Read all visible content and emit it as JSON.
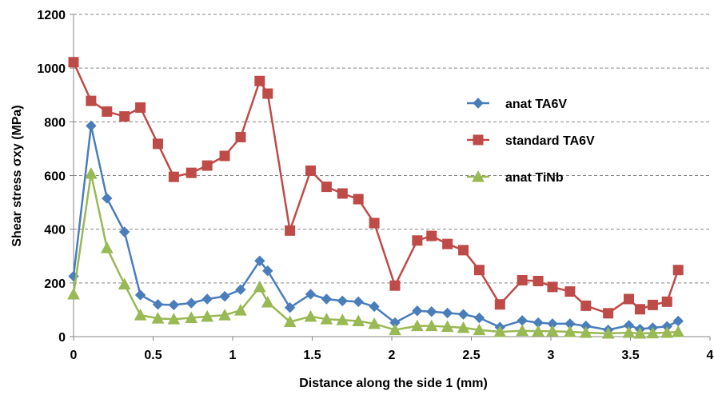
{
  "chart_data": {
    "type": "line",
    "title": "",
    "xlabel": "Distance along the side 1 (mm)",
    "ylabel": "Shear stress σxy (MPa)",
    "xlim": [
      0,
      4
    ],
    "ylim": [
      0,
      1200
    ],
    "x_ticks": [
      "0",
      "0.5",
      "1",
      "1.5",
      "2",
      "2.5",
      "3",
      "3.5",
      "4"
    ],
    "y_ticks": [
      "0",
      "200",
      "400",
      "600",
      "800",
      "1000",
      "1200"
    ],
    "grid": "horizontal-dashed",
    "legend_position": "right",
    "series": [
      {
        "name": "anat TA6V",
        "color": "#4a7ebb",
        "marker": "diamond",
        "x": [
          0,
          0.11,
          0.21,
          0.32,
          0.42,
          0.53,
          0.63,
          0.74,
          0.84,
          0.95,
          1.05,
          1.17,
          1.22,
          1.36,
          1.49,
          1.59,
          1.69,
          1.79,
          1.89,
          2.02,
          2.16,
          2.25,
          2.35,
          2.45,
          2.55,
          2.68,
          2.82,
          2.92,
          3.01,
          3.12,
          3.22,
          3.36,
          3.49,
          3.56,
          3.64,
          3.73,
          3.8
        ],
        "y": [
          225,
          785,
          515,
          390,
          155,
          120,
          118,
          125,
          140,
          150,
          175,
          282,
          245,
          108,
          158,
          140,
          133,
          130,
          112,
          52,
          96,
          93,
          88,
          83,
          70,
          35,
          60,
          52,
          48,
          48,
          40,
          25,
          42,
          28,
          33,
          38,
          58
        ]
      },
      {
        "name": "standard TA6V",
        "color": "#be4b48",
        "marker": "square",
        "x": [
          0,
          0.11,
          0.21,
          0.32,
          0.42,
          0.53,
          0.63,
          0.74,
          0.84,
          0.95,
          1.05,
          1.17,
          1.22,
          1.36,
          1.49,
          1.59,
          1.69,
          1.79,
          1.89,
          2.02,
          2.16,
          2.25,
          2.35,
          2.45,
          2.55,
          2.68,
          2.82,
          2.92,
          3.01,
          3.12,
          3.22,
          3.36,
          3.49,
          3.56,
          3.64,
          3.73,
          3.8
        ],
        "y": [
          1022,
          878,
          838,
          820,
          853,
          718,
          595,
          610,
          637,
          673,
          743,
          952,
          905,
          395,
          618,
          558,
          533,
          512,
          423,
          190,
          358,
          375,
          345,
          322,
          248,
          120,
          210,
          207,
          185,
          168,
          115,
          87,
          140,
          102,
          118,
          130,
          248
        ]
      },
      {
        "name": "anat TiNb",
        "color": "#98b954",
        "marker": "triangle",
        "x": [
          0,
          0.11,
          0.21,
          0.32,
          0.42,
          0.53,
          0.63,
          0.74,
          0.84,
          0.95,
          1.05,
          1.17,
          1.22,
          1.36,
          1.49,
          1.59,
          1.69,
          1.79,
          1.89,
          2.02,
          2.16,
          2.25,
          2.35,
          2.45,
          2.55,
          2.68,
          2.82,
          2.92,
          3.01,
          3.12,
          3.22,
          3.36,
          3.49,
          3.56,
          3.64,
          3.73,
          3.8
        ],
        "y": [
          158,
          607,
          330,
          195,
          80,
          68,
          65,
          70,
          75,
          80,
          98,
          185,
          128,
          55,
          75,
          65,
          62,
          58,
          48,
          25,
          40,
          40,
          37,
          33,
          25,
          18,
          22,
          20,
          20,
          18,
          15,
          12,
          15,
          12,
          13,
          15,
          18
        ]
      }
    ]
  }
}
